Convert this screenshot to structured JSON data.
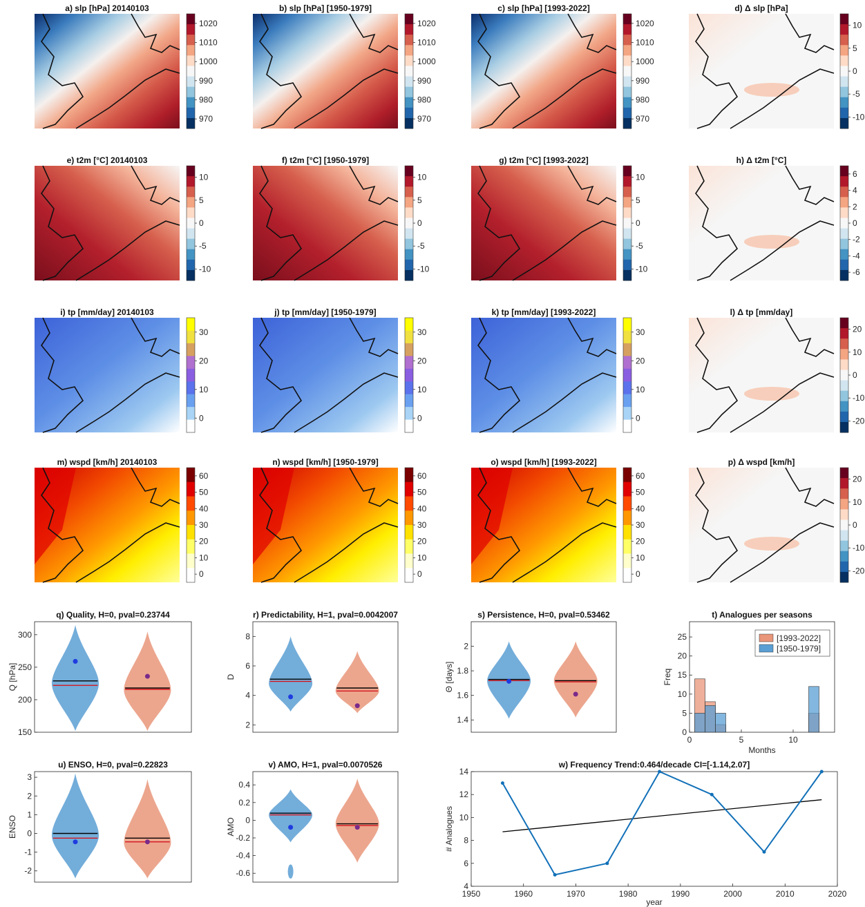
{
  "colors": {
    "blue": "#5a9fd4",
    "orange": "#e9967a",
    "line_blue": "#1170b8",
    "black": "#000000",
    "red": "#d4141c",
    "dot_blue": "#1f3ce0",
    "dot_purple": "#7a2a8a"
  },
  "maps": {
    "rows": [
      {
        "field": "slp",
        "titles": [
          "a) slp [hPa] 20140103",
          "b) slp [hPa] [1950-1979]",
          "c) slp [hPa] [1993-2022]",
          "d) Δ slp [hPa]"
        ],
        "colorbar": [
          "1020",
          "1010",
          "1000",
          "990",
          "980",
          "970"
        ],
        "delta_colorbar": [
          "10",
          "5",
          "0",
          "-5",
          "-10"
        ],
        "colorscale": "diverging-red-blue"
      },
      {
        "field": "t2m",
        "titles": [
          "e) t2m [°C] 20140103",
          "f) t2m [°C] [1950-1979]",
          "g) t2m [°C] [1993-2022]",
          "h) Δ t2m [°C]"
        ],
        "colorbar": [
          "10",
          "5",
          "0",
          "-5",
          "-10"
        ],
        "delta_colorbar": [
          "6",
          "4",
          "2",
          "0",
          "-2",
          "-4",
          "-6"
        ],
        "colorscale": "diverging-red-blue"
      },
      {
        "field": "tp",
        "titles": [
          "i) tp [mm/day] 20140103",
          "j) tp [mm/day] [1950-1979]",
          "k) tp [mm/day] [1993-2022]",
          "l) Δ tp [mm/day]"
        ],
        "colorbar": [
          "30",
          "20",
          "10",
          "0"
        ],
        "delta_colorbar": [
          "20",
          "10",
          "0",
          "-10",
          "-20"
        ],
        "colorscale": "blue-purple-yellow"
      },
      {
        "field": "wspd",
        "titles": [
          "m) wspd [km/h] 20140103",
          "n) wspd [km/h] [1950-1979]",
          "o) wspd [km/h] [1993-2022]",
          "p) Δ wspd [km/h]"
        ],
        "colorbar": [
          "60",
          "50",
          "40",
          "30",
          "20",
          "10",
          "0"
        ],
        "delta_colorbar": [
          "20",
          "10",
          "0",
          "-10",
          "-20"
        ],
        "colorscale": "white-yellow-red"
      }
    ]
  },
  "chart_data": [
    {
      "type": "violin",
      "title": "q)  Quality, H=0, pval=0.23744",
      "ylabel": "Q [hPa]",
      "ylim": [
        150,
        320
      ],
      "yticks": [
        150,
        200,
        250,
        300
      ],
      "groups": [
        {
          "name": "[1950-1979]",
          "color": "blue",
          "min": 152,
          "max": 315,
          "mode": 225,
          "mean": 229,
          "median": 222,
          "dot": 259
        },
        {
          "name": "[1993-2022]",
          "color": "orange",
          "min": 152,
          "max": 305,
          "mode": 215,
          "mean": 218,
          "median": 216,
          "dot": 236
        }
      ]
    },
    {
      "type": "violin",
      "title": "r)  Predictability, H=1, pval=0.0042007",
      "ylabel": "D",
      "ylim": [
        1.5,
        9
      ],
      "yticks": [
        2,
        4,
        6,
        8
      ],
      "groups": [
        {
          "name": "[1950-1979]",
          "color": "blue",
          "min": 2.9,
          "max": 8.0,
          "mode": 4.8,
          "mean": 5.1,
          "median": 4.95,
          "dot": 3.9
        },
        {
          "name": "[1993-2022]",
          "color": "orange",
          "min": 2.8,
          "max": 7.0,
          "mode": 4.3,
          "mean": 4.5,
          "median": 4.3,
          "dot": 3.3
        }
      ]
    },
    {
      "type": "violin",
      "title": "s)  Persistence, H=0, pval=0.53462",
      "ylabel": "Θ [days]",
      "ylim": [
        1.3,
        2.2
      ],
      "yticks": [
        1.4,
        1.6,
        1.8,
        2.0
      ],
      "ytick_labels": [
        "1.4",
        "1.6",
        "1.8",
        "2"
      ],
      "groups": [
        {
          "name": "[1950-1979]",
          "color": "blue",
          "min": 1.41,
          "max": 2.04,
          "mode": 1.72,
          "mean": 1.73,
          "median": 1.72,
          "dot": 1.715
        },
        {
          "name": "[1993-2022]",
          "color": "orange",
          "min": 1.42,
          "max": 2.04,
          "mode": 1.72,
          "mean": 1.72,
          "median": 1.71,
          "dot": 1.61
        }
      ]
    },
    {
      "type": "violin",
      "title": "u)  ENSO, H=0, pval=0.22823",
      "ylabel": "ENSO",
      "ylim": [
        -2.6,
        3.3
      ],
      "yticks": [
        -2,
        -1,
        0,
        1,
        2,
        3
      ],
      "groups": [
        {
          "name": "[1950-1979]",
          "color": "blue",
          "min": -2.4,
          "max": 3.2,
          "mode": -0.1,
          "mean": 0.0,
          "median": -0.25,
          "dot": -0.45
        },
        {
          "name": "[1993-2022]",
          "color": "orange",
          "min": -2.4,
          "max": 2.9,
          "mode": -0.5,
          "mean": -0.25,
          "median": -0.45,
          "dot": -0.45
        }
      ]
    },
    {
      "type": "violin",
      "title": "v)  AMO, H=1, pval=0.0070526",
      "ylabel": "AMO",
      "ylim": [
        -0.7,
        0.55
      ],
      "yticks": [
        -0.6,
        -0.4,
        -0.2,
        0,
        0.2,
        0.4
      ],
      "groups": [
        {
          "name": "[1950-1979]",
          "color": "blue",
          "min": -0.25,
          "max": 0.35,
          "mode": 0.06,
          "mean": 0.08,
          "median": 0.06,
          "dot": -0.08,
          "blob": [
            -0.66,
            -0.5
          ]
        },
        {
          "name": "[1993-2022]",
          "color": "orange",
          "min": -0.48,
          "max": 0.47,
          "mode": -0.04,
          "mean": -0.04,
          "median": -0.06,
          "dot": -0.08
        }
      ]
    },
    {
      "type": "bar",
      "title": "t) Analogues per seasons",
      "xlabel": "Months",
      "ylabel": "Freq",
      "xlim": [
        0,
        14
      ],
      "ylim": [
        0,
        29
      ],
      "xticks": [
        0,
        5,
        10
      ],
      "yticks": [
        0,
        5,
        10,
        15,
        20,
        25
      ],
      "bin_edges": [
        0.5,
        1.5,
        2.5,
        3.5,
        11.5,
        12.5
      ],
      "series": [
        {
          "name": "[1993-2022]",
          "color": "orange",
          "values": [
            14,
            8,
            2,
            0,
            5
          ]
        },
        {
          "name": "[1950-1979]",
          "color": "blue",
          "values": [
            5,
            7,
            5,
            0,
            12
          ]
        }
      ],
      "legend": "top-right"
    },
    {
      "type": "line",
      "title": "w) Frequency Trend:0.464/decade CI=[-1.14,2.07]",
      "xlabel": "year",
      "ylabel": "# Analogues",
      "xlim": [
        1950,
        2020
      ],
      "ylim": [
        4,
        14
      ],
      "xticks": [
        1950,
        1960,
        1970,
        1980,
        1990,
        2000,
        2010,
        2020
      ],
      "yticks": [
        4,
        6,
        8,
        10,
        12,
        14
      ],
      "x": [
        1956,
        1966,
        1976,
        1986,
        1996,
        2006,
        2017
      ],
      "y": [
        13,
        5,
        6,
        14,
        12,
        7,
        14
      ],
      "trend": {
        "x": [
          1956,
          2017
        ],
        "y": [
          8.75,
          11.55
        ]
      }
    }
  ]
}
